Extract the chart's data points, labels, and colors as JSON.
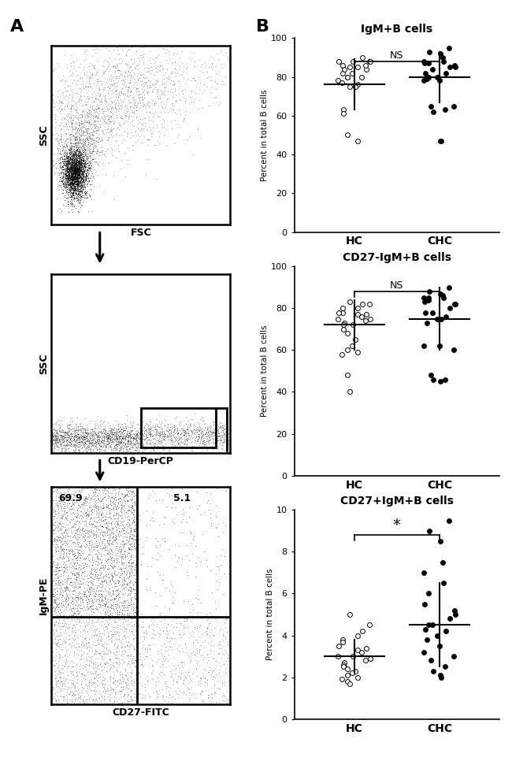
{
  "panel_A_label": "A",
  "panel_B_label": "B",
  "plot1_xlabel": "FSC",
  "plot1_ylabel": "SSC",
  "plot2_xlabel": "CD19-PerCP",
  "plot2_ylabel": "SSC",
  "plot3_xlabel": "CD27-FITC",
  "plot3_ylabel": "IgM-PE",
  "plot3_val1": "69.9",
  "plot3_val2": "5.1",
  "scatter1_title": "IgM+B cells",
  "scatter1_ylabel": "Percent in total B cells",
  "scatter1_ylim": [
    0,
    100
  ],
  "scatter1_yticks": [
    0,
    20,
    40,
    60,
    80,
    100
  ],
  "scatter1_sig": "NS",
  "scatter2_title": "CD27-IgM+B cells",
  "scatter2_ylabel": "Percent in total B cells",
  "scatter2_ylim": [
    0,
    100
  ],
  "scatter2_yticks": [
    0,
    20,
    40,
    60,
    80,
    100
  ],
  "scatter2_sig": "NS",
  "scatter3_title": "CD27+IgM+B cells",
  "scatter3_ylabel": "Percent in total B cells",
  "scatter3_ylim": [
    0,
    10
  ],
  "scatter3_yticks": [
    0,
    2,
    4,
    6,
    8,
    10
  ],
  "scatter3_sig": "*",
  "hc_label": "HC",
  "chc_label": "CHC",
  "scatter1_hc": [
    75,
    88,
    90,
    85,
    82,
    86,
    88,
    84,
    76,
    80,
    78,
    88,
    86,
    84,
    63,
    61,
    80,
    75,
    82,
    50,
    47,
    77,
    80,
    85,
    88
  ],
  "scatter1_hc_mean": 76,
  "scatter1_hc_sd": 13,
  "scatter1_chc": [
    95,
    93,
    92,
    90,
    88,
    88,
    87,
    87,
    86,
    85,
    85,
    84,
    82,
    82,
    80,
    79,
    78,
    78,
    65,
    65,
    63,
    62,
    47,
    47,
    80
  ],
  "scatter1_chc_mean": 80,
  "scatter1_chc_sd": 13,
  "scatter2_hc": [
    83,
    82,
    82,
    80,
    80,
    78,
    78,
    77,
    77,
    76,
    75,
    75,
    74,
    73,
    72,
    70,
    68,
    65,
    62,
    60,
    59,
    58,
    48,
    40,
    72
  ],
  "scatter2_hc_mean": 72,
  "scatter2_hc_sd": 12,
  "scatter2_chc": [
    90,
    88,
    87,
    86,
    85,
    85,
    84,
    83,
    82,
    82,
    80,
    78,
    78,
    76,
    75,
    73,
    62,
    62,
    60,
    48,
    46,
    46,
    45,
    75,
    85
  ],
  "scatter2_chc_mean": 75,
  "scatter2_chc_sd": 15,
  "scatter3_hc": [
    5,
    4.5,
    4.2,
    4.0,
    3.8,
    3.7,
    3.5,
    3.4,
    3.3,
    3.2,
    3.0,
    2.9,
    2.8,
    2.7,
    2.6,
    2.5,
    2.4,
    2.3,
    2.2,
    2.1,
    2.0,
    1.9,
    1.8,
    1.7,
    3.0
  ],
  "scatter3_hc_mean": 3.0,
  "scatter3_hc_sd": 0.8,
  "scatter3_chc": [
    9.5,
    9.0,
    8.5,
    7.5,
    7.0,
    6.5,
    6.0,
    5.5,
    5.2,
    5.0,
    4.8,
    4.5,
    4.3,
    4.2,
    4.0,
    3.8,
    3.5,
    3.2,
    3.0,
    2.8,
    2.5,
    2.3,
    2.1,
    2.0,
    4.5
  ],
  "scatter3_chc_mean": 4.5,
  "scatter3_chc_sd": 2.0
}
